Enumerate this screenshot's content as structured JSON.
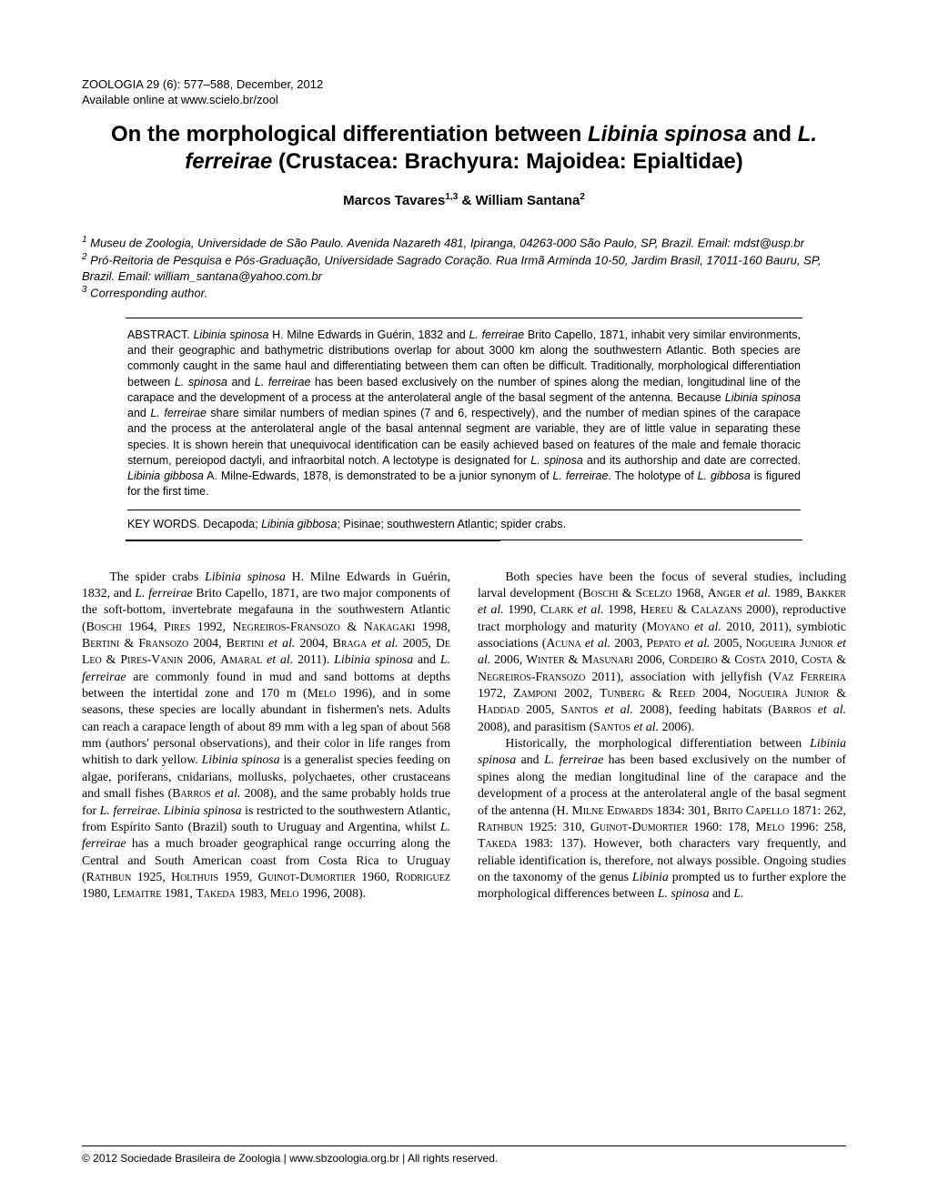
{
  "journal": {
    "citation": "ZOOLOGIA 29 (6): 577–588, December, 2012",
    "available": "Available online at www.scielo.br/zool"
  },
  "title_pre": "On the morphological differentiation between ",
  "title_sp1": "Libinia spinosa",
  "title_mid": " and ",
  "title_sp2": "L. ferreirae",
  "title_post": " (Crustacea: Brachyura: Majoidea: Epialtidae)",
  "authors": "Marcos Tavares",
  "authors_sup1": "1,3",
  "authors_amp": " & William Santana",
  "authors_sup2": "2",
  "aff1_sup": "1",
  "aff1": " Museu de Zoologia, Universidade de São Paulo. Avenida Nazareth 481, Ipiranga, 04263-000 São Paulo, SP, Brazil. Email: mdst@usp.br",
  "aff2_sup": "2",
  "aff2": " Pró-Reitoria de Pesquisa e Pós-Graduação, Universidade Sagrado Coração. Rua Irmã Arminda 10-50, Jardim Brasil, 17011-160 Bauru, SP, Brazil. Email: william_santana@yahoo.com.br",
  "aff3_sup": "3",
  "aff3": " Corresponding author.",
  "abstract_label": "ABSTRACT. ",
  "abstract_body": "Libinia spinosa H. Milne Edwards in Guérin, 1832 and L. ferreirae Brito Capello, 1871, inhabit very similar environments, and their geographic and bathymetric distributions overlap for about 3000 km along the southwestern Atlantic. Both species are commonly caught in the same haul and differentiating between them can often be difficult. Traditionally, morphological differentiation between L. spinosa and L. ferreirae has been based exclusively on the number of spines along the median, longitudinal line of the carapace and the development of a process at the anterolateral angle of the basal segment of the antenna. Because Libinia spinosa and L. ferreirae share similar numbers of median spines (7 and 6, respectively), and the number of median spines of the carapace and the process at the anterolateral angle of the basal antennal segment are variable, they are of little value in separating these species. It is shown herein that unequivocal identification can be easily achieved based on features of the male and female thoracic sternum, pereiopod dactyli, and infraorbital notch. A lectotype is designated for L. spinosa and its authorship and date are corrected. Libinia gibbosa A. Milne-Edwards, 1878, is demonstrated to be a junior synonym of L. ferreirae. The holotype of L. gibbosa is figured for the first time.",
  "keywords_label": "KEY WORDS. ",
  "keywords_body": "Decapoda; Libinia gibbosa; Pisinae; southwestern Atlantic; spider crabs.",
  "col1": "The spider crabs Libinia spinosa H. Milne Edwards in Guérin, 1832, and L. ferreirae Brito Capello, 1871, are two major components of the soft-bottom, invertebrate megafauna in the southwestern Atlantic (Boschi 1964, Pires 1992, Negreiros-Fransozo & Nakagaki 1998, Bertini & Fransozo 2004, Bertini et al. 2004, Braga et al. 2005, De Leo & Pires-Vanin 2006, Amaral et al. 2011). Libinia spinosa and L. ferreirae are commonly found in mud and sand bottoms at depths between the intertidal zone and 170 m (Melo 1996), and in some seasons, these species are locally abundant in fishermen's nets. Adults can reach a carapace length of about 89 mm with a leg span of about 568 mm (authors' personal observations), and their color in life ranges from whitish to dark yellow. Libinia spinosa is a generalist species feeding on algae, poriferans, cnidarians, mollusks, polychaetes, other crustaceans and small fishes (Barros et al. 2008), and the same probably holds true for L. ferreirae. Libinia spinosa is restricted to the southwestern Atlantic, from Espírito Santo (Brazil) south to Uruguay and Argentina, whilst L. ferreirae has a much broader geographical range occurring along the Central and South American coast from Costa Rica to Uruguay (Rathbun 1925, Holthuis 1959, Guinot-Dumortier 1960, Rodriguez 1980, Lemaitre 1981, Takeda 1983, Melo 1996, 2008).",
  "col2a": "Both species have been the focus of several studies, including larval development (Boschi & Scelzo 1968, Anger et al. 1989, Bakker et al. 1990, Clark et al. 1998, Hereu & Calazans 2000), reproductive tract morphology and maturity (Moyano et al. 2010, 2011), symbiotic associations (Acuna et al. 2003, Pepato et al. 2005, Nogueira Junior et al. 2006, Winter & Masunari 2006, Cordeiro & Costa 2010, Costa & Negreiros-Fransozo 2011), association with jellyfish (Vaz Ferreira 1972, Zamponi 2002, Tunberg & Reed 2004, Nogueira Junior & Haddad 2005, Santos et al. 2008), feeding habitats (Barros et al. 2008), and parasitism (Santos et al. 2006).",
  "col2b": "Historically, the morphological differentiation between Libinia spinosa and L. ferreirae has been based exclusively on the number of spines along the median longitudinal line of the carapace and the development of a process at the anterolateral angle of the basal segment of the antenna (H. Milne Edwards 1834: 301, Brito Capello 1871: 262, Rathbun 1925: 310, Guinot-Dumortier 1960: 178, Melo 1996: 258, Takeda 1983: 137). However, both characters vary frequently, and reliable identification is, therefore, not always possible. Ongoing studies on the taxonomy of the genus Libinia prompted us to further explore the morphological differences between L. spinosa and L.",
  "footer": "© 2012 Sociedade Brasileira de Zoologia | www.sbzoologia.org.br | All rights reserved."
}
